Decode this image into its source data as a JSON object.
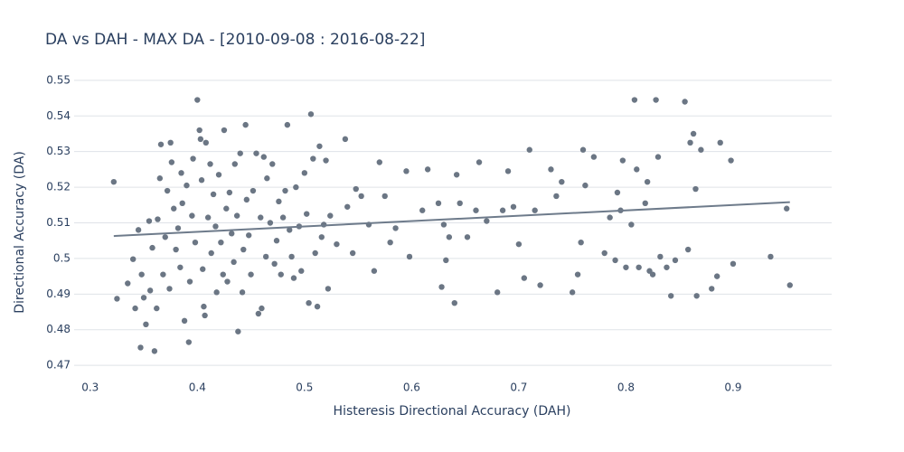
{
  "chart_data": {
    "type": "scatter",
    "title": "DA vs DAH - MAX DA - [2010-09-08 : 2016-08-22]",
    "x_label": "Histeresis Directional Accuracy (DAH)",
    "y_label": "Directional Accuracy (DA)",
    "color": "#6b7684",
    "grid": true,
    "xlim": [
      0.285,
      0.992
    ],
    "ylim": [
      0.4675,
      0.5525
    ],
    "xticks": [
      0.3,
      0.4,
      0.5,
      0.6,
      0.7,
      0.8,
      0.9
    ],
    "yticks": [
      0.47,
      0.48,
      0.49,
      0.5,
      0.51,
      0.52,
      0.53,
      0.54,
      0.55
    ],
    "x": [
      0.322,
      0.325,
      0.335,
      0.34,
      0.342,
      0.345,
      0.347,
      0.348,
      0.35,
      0.352,
      0.355,
      0.356,
      0.358,
      0.36,
      0.362,
      0.363,
      0.365,
      0.366,
      0.368,
      0.37,
      0.372,
      0.374,
      0.375,
      0.376,
      0.378,
      0.38,
      0.382,
      0.384,
      0.385,
      0.386,
      0.388,
      0.39,
      0.392,
      0.393,
      0.395,
      0.396,
      0.398,
      0.4,
      0.402,
      0.403,
      0.404,
      0.405,
      0.406,
      0.407,
      0.408,
      0.41,
      0.412,
      0.413,
      0.415,
      0.417,
      0.418,
      0.42,
      0.422,
      0.424,
      0.425,
      0.427,
      0.428,
      0.43,
      0.432,
      0.434,
      0.435,
      0.437,
      0.438,
      0.44,
      0.442,
      0.443,
      0.445,
      0.446,
      0.448,
      0.45,
      0.452,
      0.455,
      0.457,
      0.459,
      0.46,
      0.462,
      0.464,
      0.465,
      0.468,
      0.47,
      0.472,
      0.474,
      0.476,
      0.478,
      0.48,
      0.482,
      0.484,
      0.486,
      0.488,
      0.49,
      0.492,
      0.495,
      0.497,
      0.5,
      0.502,
      0.504,
      0.506,
      0.508,
      0.51,
      0.512,
      0.514,
      0.516,
      0.518,
      0.52,
      0.522,
      0.524,
      0.53,
      0.538,
      0.54,
      0.545,
      0.548,
      0.553,
      0.56,
      0.565,
      0.57,
      0.575,
      0.58,
      0.585,
      0.595,
      0.598,
      0.61,
      0.615,
      0.625,
      0.628,
      0.63,
      0.632,
      0.635,
      0.64,
      0.642,
      0.645,
      0.652,
      0.66,
      0.663,
      0.67,
      0.68,
      0.685,
      0.69,
      0.695,
      0.7,
      0.705,
      0.71,
      0.715,
      0.72,
      0.73,
      0.735,
      0.74,
      0.75,
      0.755,
      0.758,
      0.76,
      0.762,
      0.77,
      0.78,
      0.785,
      0.79,
      0.792,
      0.795,
      0.797,
      0.8,
      0.805,
      0.808,
      0.81,
      0.812,
      0.818,
      0.82,
      0.822,
      0.825,
      0.828,
      0.83,
      0.832,
      0.838,
      0.842,
      0.846,
      0.855,
      0.858,
      0.86,
      0.863,
      0.865,
      0.866,
      0.87,
      0.88,
      0.885,
      0.888,
      0.898,
      0.9,
      0.935,
      0.95,
      0.953
    ],
    "y": [
      0.5215,
      0.4887,
      0.493,
      0.4998,
      0.486,
      0.508,
      0.475,
      0.4955,
      0.489,
      0.4815,
      0.5105,
      0.491,
      0.503,
      0.474,
      0.486,
      0.511,
      0.5225,
      0.532,
      0.4955,
      0.506,
      0.519,
      0.4915,
      0.5325,
      0.527,
      0.514,
      0.5025,
      0.5085,
      0.4975,
      0.524,
      0.5155,
      0.4825,
      0.5205,
      0.4765,
      0.4935,
      0.512,
      0.528,
      0.5045,
      0.5445,
      0.536,
      0.5335,
      0.522,
      0.497,
      0.4865,
      0.484,
      0.5325,
      0.5115,
      0.5265,
      0.5015,
      0.518,
      0.509,
      0.4905,
      0.5235,
      0.5045,
      0.4955,
      0.536,
      0.514,
      0.4935,
      0.5185,
      0.507,
      0.499,
      0.5265,
      0.512,
      0.4795,
      0.5295,
      0.4905,
      0.5025,
      0.5375,
      0.5165,
      0.5065,
      0.4955,
      0.519,
      0.5295,
      0.4845,
      0.5115,
      0.486,
      0.5285,
      0.5005,
      0.5225,
      0.51,
      0.5265,
      0.4985,
      0.505,
      0.516,
      0.4955,
      0.5115,
      0.519,
      0.5375,
      0.508,
      0.5005,
      0.4945,
      0.52,
      0.509,
      0.4965,
      0.524,
      0.5125,
      0.4875,
      0.5405,
      0.528,
      0.5015,
      0.4865,
      0.5315,
      0.506,
      0.5095,
      0.5275,
      0.4915,
      0.512,
      0.504,
      0.5335,
      0.5145,
      0.5015,
      0.5195,
      0.5175,
      0.5095,
      0.4965,
      0.527,
      0.5175,
      0.5045,
      0.5085,
      0.5245,
      0.5005,
      0.5135,
      0.525,
      0.5155,
      0.492,
      0.5095,
      0.4995,
      0.506,
      0.4875,
      0.5235,
      0.5155,
      0.506,
      0.5135,
      0.527,
      0.5105,
      0.4905,
      0.5135,
      0.5245,
      0.5145,
      0.504,
      0.4945,
      0.5305,
      0.5135,
      0.4925,
      0.525,
      0.5175,
      0.5215,
      0.4905,
      0.4955,
      0.5045,
      0.5305,
      0.5205,
      0.5285,
      0.5015,
      0.5115,
      0.4995,
      0.5185,
      0.5135,
      0.5275,
      0.4975,
      0.5095,
      0.5445,
      0.525,
      0.4975,
      0.5155,
      0.5215,
      0.4965,
      0.4955,
      0.5445,
      0.5285,
      0.5005,
      0.4975,
      0.4895,
      0.4995,
      0.544,
      0.5025,
      0.5325,
      0.535,
      0.5195,
      0.4895,
      0.5305,
      0.4915,
      0.495,
      0.5325,
      0.5275,
      0.4985,
      0.5005,
      0.514,
      0.4925
    ],
    "trendline": {
      "x": [
        0.322,
        0.953
      ],
      "y": [
        0.5063,
        0.5158
      ],
      "color": "#6e7b8b"
    }
  }
}
